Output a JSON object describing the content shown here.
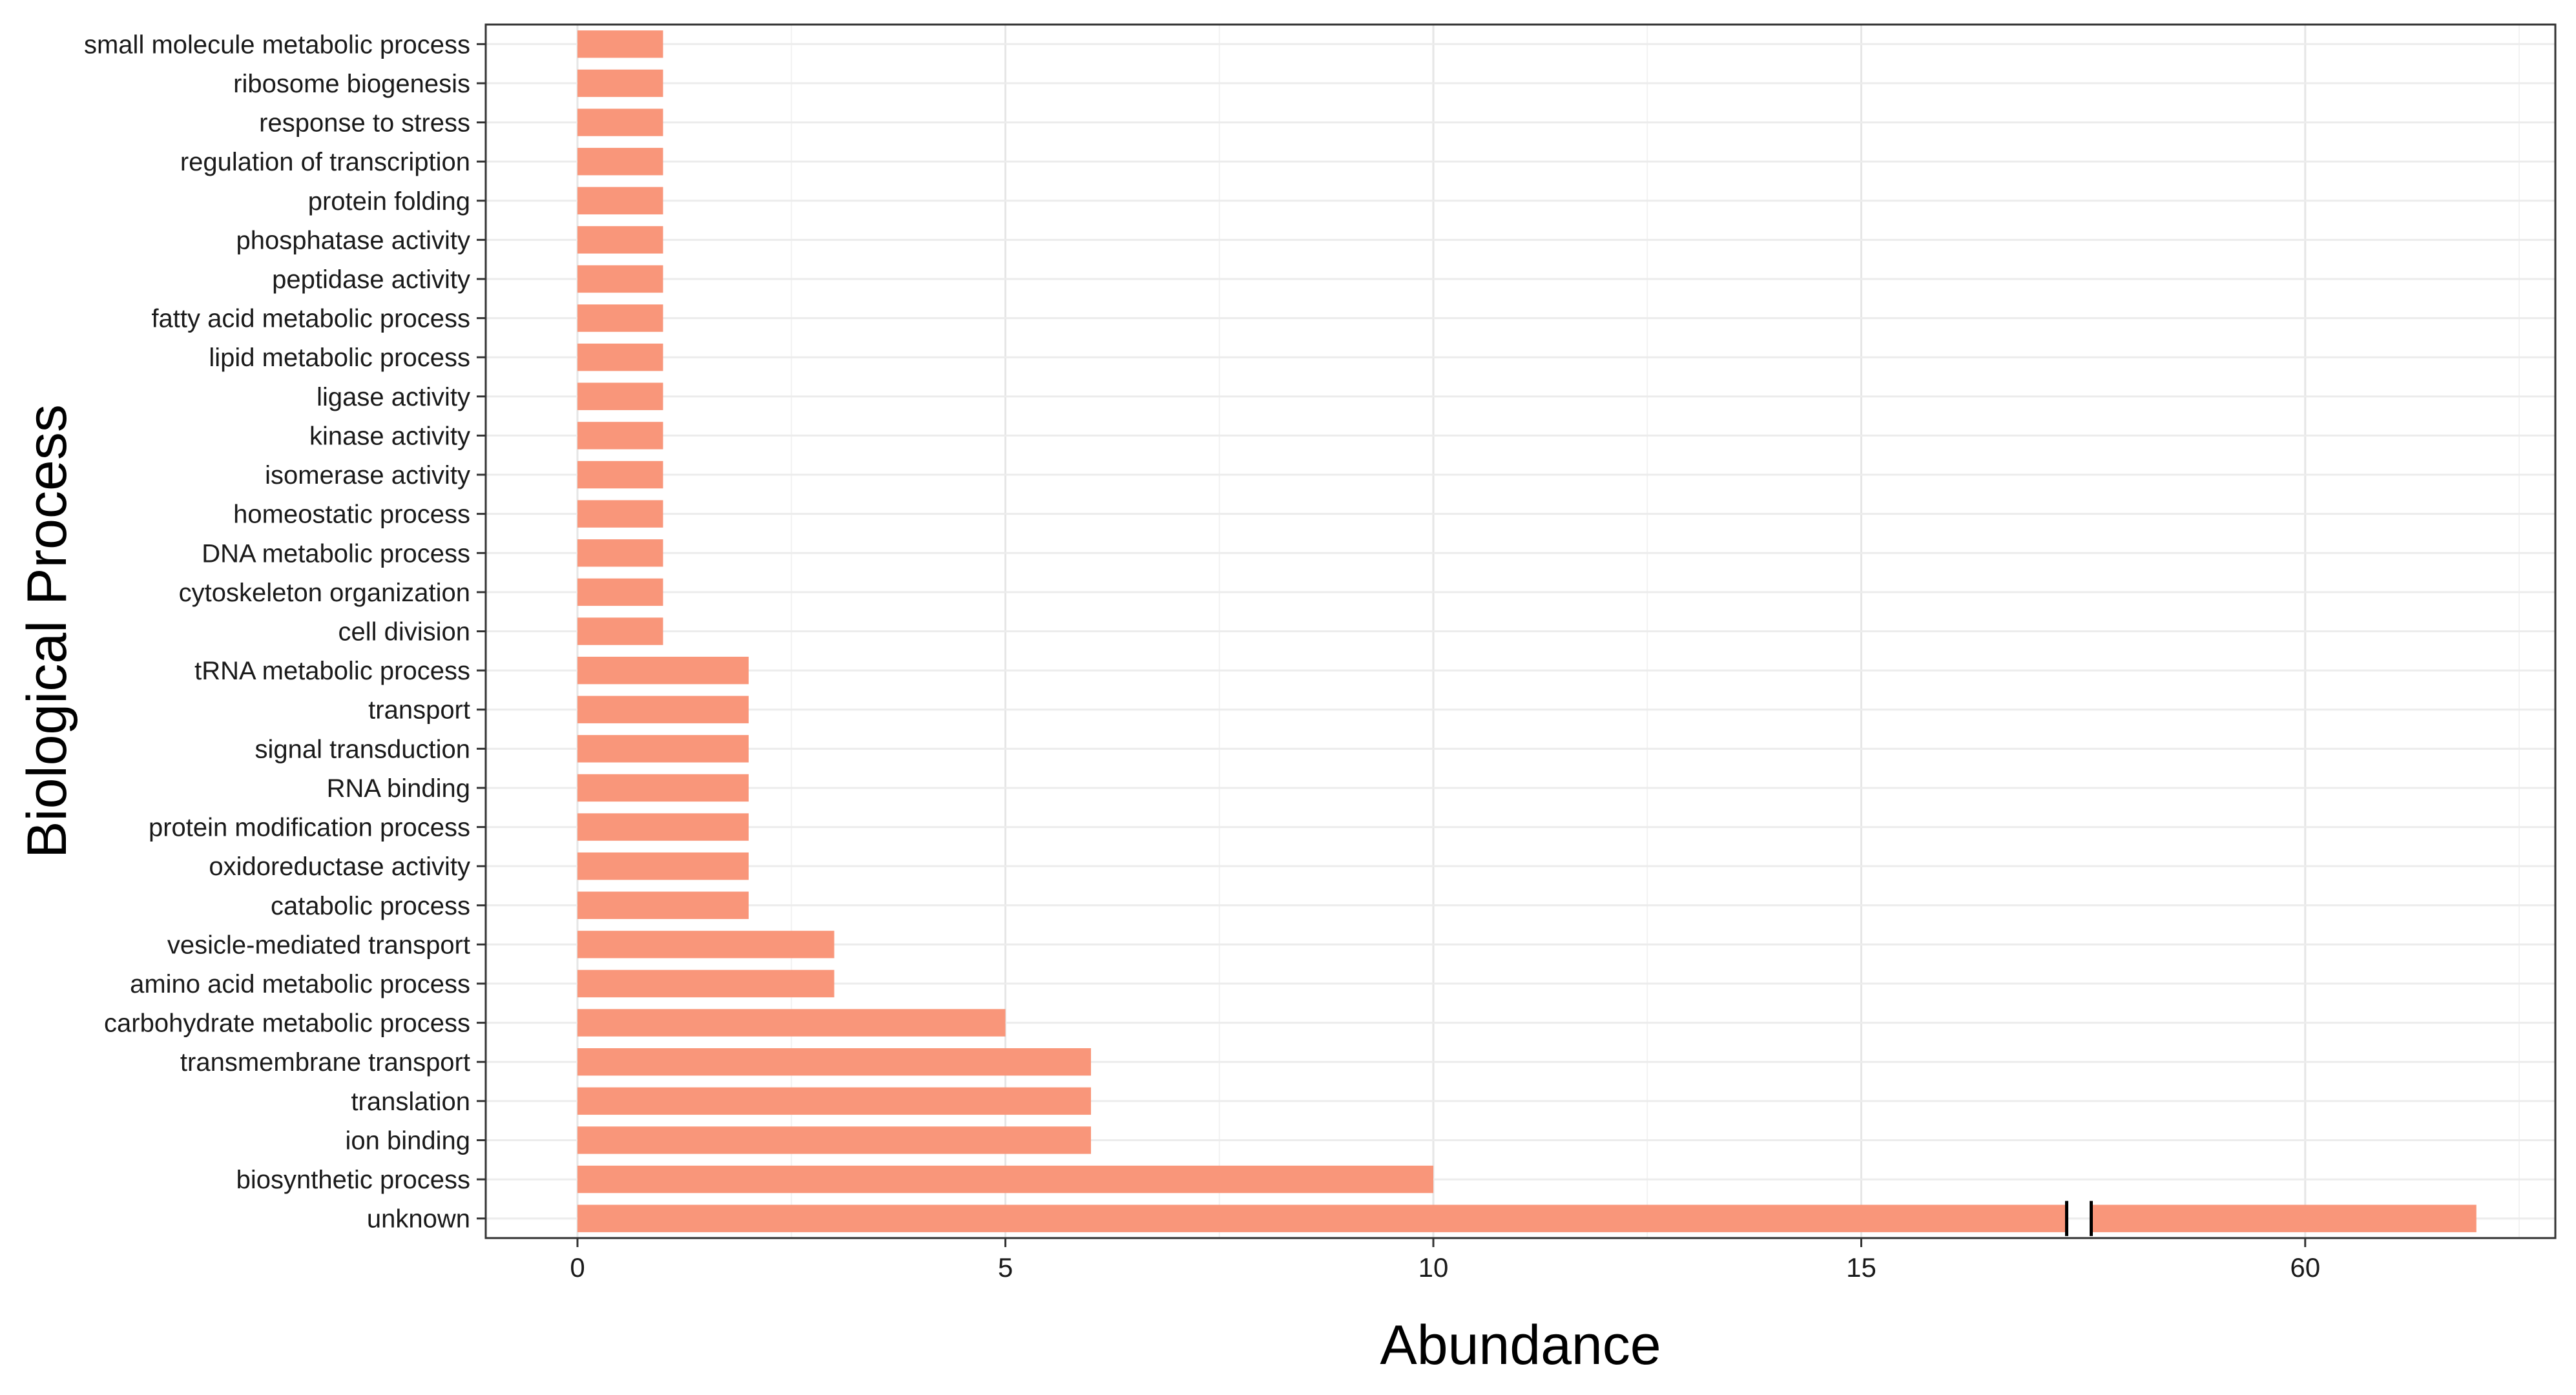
{
  "chart_data": {
    "type": "bar",
    "orientation": "horizontal",
    "xlabel": "Abundance",
    "ylabel": "Biological Process",
    "grid": true,
    "legend": "none",
    "axis_break": {
      "break_after": 17.4,
      "resume_at": 57.5
    },
    "xlim": [
      0,
      64.5
    ],
    "xticks": [
      0,
      5,
      10,
      15,
      60
    ],
    "bar_color": "#F9967A",
    "categories": [
      "small molecule metabolic process",
      "ribosome biogenesis",
      "response to stress",
      "regulation of transcription",
      "protein folding",
      "phosphatase activity",
      "peptidase activity",
      "fatty acid metabolic process",
      "lipid metabolic process",
      "ligase activity",
      "kinase activity",
      "isomerase activity",
      "homeostatic process",
      "DNA metabolic process",
      "cytoskeleton organization",
      "cell division",
      "tRNA metabolic process",
      "transport",
      "signal transduction",
      "RNA binding",
      "protein modification process",
      "oxidoreductase activity",
      "catabolic process",
      "vesicle-mediated transport",
      "amino acid metabolic process",
      "carbohydrate metabolic process",
      "transmembrane transport",
      "translation",
      "ion binding",
      "biosynthetic process",
      "unknown"
    ],
    "values": [
      1,
      1,
      1,
      1,
      1,
      1,
      1,
      1,
      1,
      1,
      1,
      1,
      1,
      1,
      1,
      1,
      2,
      2,
      2,
      2,
      2,
      2,
      2,
      3,
      3,
      5,
      6,
      6,
      6,
      10,
      62
    ]
  }
}
